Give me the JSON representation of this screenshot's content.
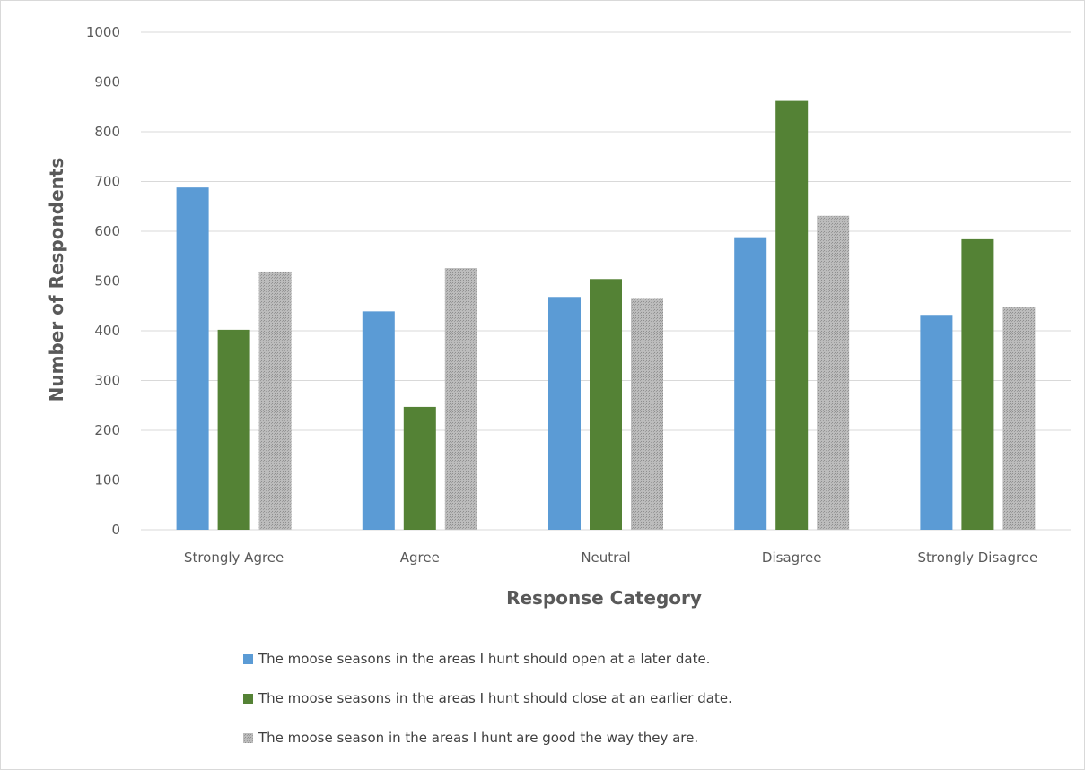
{
  "chart_data": {
    "type": "bar",
    "title": "",
    "xlabel": "Response Category",
    "ylabel": "Number of Respondents",
    "ylim": [
      0,
      1000
    ],
    "yticks": [
      0,
      100,
      200,
      300,
      400,
      500,
      600,
      700,
      800,
      900,
      1000
    ],
    "grid": true,
    "legend_position": "bottom",
    "categories": [
      "Strongly Agree",
      "Agree",
      "Neutral",
      "Disagree",
      "Strongly Disagree"
    ],
    "series": [
      {
        "name": "The moose seasons in the areas I hunt should open at a later date.",
        "color": "#5b9bd5",
        "values": [
          688,
          439,
          468,
          588,
          432
        ]
      },
      {
        "name": "The moose seasons in the areas I hunt should close at an earlier date.",
        "color": "#548235",
        "values": [
          402,
          247,
          504,
          862,
          584
        ]
      },
      {
        "name": "The moose season in the areas I hunt are good the way they are.",
        "color": "#a5a5a5",
        "pattern": "dotted-fill",
        "values": [
          519,
          526,
          464,
          631,
          447
        ]
      }
    ]
  }
}
